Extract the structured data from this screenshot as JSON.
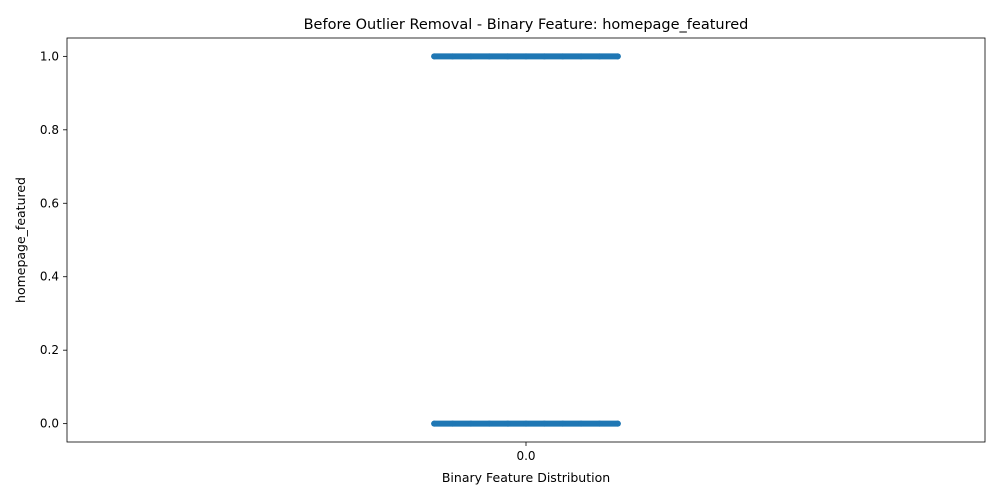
{
  "chart_data": {
    "type": "scatter",
    "title": "Before Outlier Removal - Binary Feature: homepage_featured",
    "xlabel": "Binary Feature Distribution",
    "ylabel": "homepage_featured",
    "x_ticks": [
      "0.0"
    ],
    "y_ticks": [
      "0.0",
      "0.2",
      "0.4",
      "0.6",
      "0.8",
      "1.0"
    ],
    "xlim": [
      -0.5,
      0.5
    ],
    "ylim": [
      -0.05,
      1.05
    ],
    "jitter_range": [
      -0.1,
      0.1
    ],
    "grid": false,
    "legend": "none",
    "series": [
      {
        "color": "#1f77b4",
        "groups": [
          {
            "y": 0.0,
            "x_values": [
              -0.1,
              -0.08,
              -0.06,
              -0.04,
              -0.02,
              0.0,
              0.02,
              0.04,
              0.06,
              0.08,
              0.1
            ]
          },
          {
            "y": 1.0,
            "x_values": [
              -0.1,
              -0.08,
              -0.06,
              -0.04,
              -0.02,
              0.0,
              0.02,
              0.04,
              0.06,
              0.08,
              0.1
            ]
          }
        ]
      }
    ]
  }
}
